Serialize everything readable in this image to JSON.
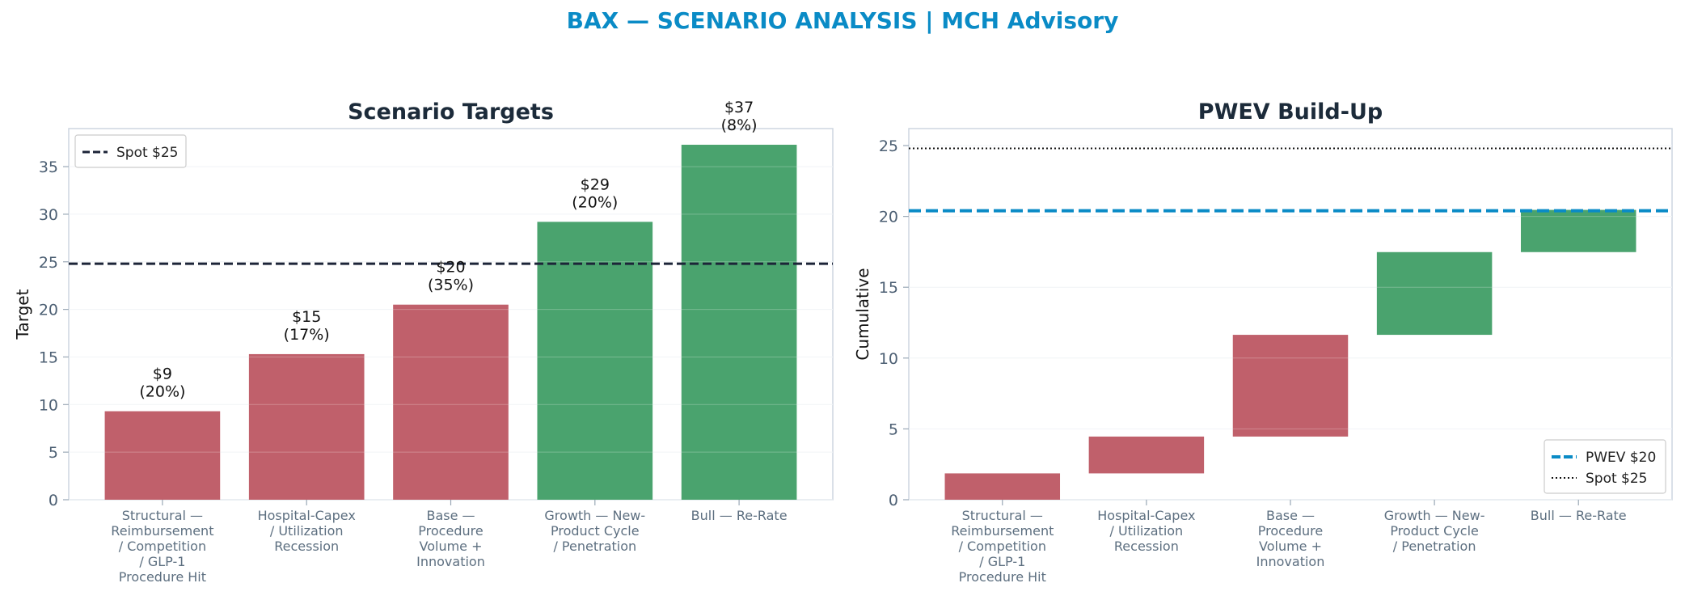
{
  "title": "BAX — SCENARIO ANALYSIS | MCH Advisory",
  "colors": {
    "bear": "#c0606b",
    "bull": "#4aa36e",
    "pwev": "#0a8bc6",
    "spot": "#1c2438",
    "title": "#0a8bc6"
  },
  "chart_data": [
    {
      "type": "bar",
      "title": "Scenario Targets",
      "xlabel": "",
      "ylabel": "Target",
      "categories": [
        "Structural — Reimbursement / Competition / GLP-1 Procedure Hit",
        "Hospital-Capex / Utilization Recession",
        "Base — Procedure Volume + Innovation",
        "Growth — New-Product Cycle / Penetration",
        "Bull — Re-Rate"
      ],
      "category_lines": [
        [
          "Structural —",
          "Reimbursement",
          "/ Competition",
          "/ GLP-1",
          "Procedure Hit"
        ],
        [
          "Hospital-Capex",
          "/ Utilization",
          "Recession"
        ],
        [
          "Base —",
          "Procedure",
          "Volume +",
          "Innovation"
        ],
        [
          "Growth — New-",
          "Product Cycle",
          "/ Penetration"
        ],
        [
          "Bull — Re-Rate"
        ]
      ],
      "values": [
        9.3,
        15.3,
        20.5,
        29.2,
        37.3
      ],
      "bar_colors": [
        "bear",
        "bear",
        "bear",
        "bull",
        "bull"
      ],
      "value_labels": [
        "$9",
        "$15",
        "$20",
        "$29",
        "$37"
      ],
      "prob_labels": [
        "(20%)",
        "(17%)",
        "(35%)",
        "(20%)",
        "(8%)"
      ],
      "ylim": [
        0,
        39
      ],
      "yticks": [
        0,
        5,
        10,
        15,
        20,
        25,
        30,
        35
      ],
      "reference_lines": [
        {
          "label": "Spot $25",
          "value": 24.8,
          "style": "dashed"
        }
      ],
      "legend_position": "top-left",
      "grid": true
    },
    {
      "type": "waterfall",
      "title": "PWEV Build-Up",
      "xlabel": "",
      "ylabel": "Cumulative",
      "categories": [
        "Structural — Reimbursement / Competition / GLP-1 Procedure Hit",
        "Hospital-Capex / Utilization Recession",
        "Base — Procedure Volume + Innovation",
        "Growth — New-Product Cycle / Penetration",
        "Bull — Re-Rate"
      ],
      "category_lines": [
        [
          "Structural —",
          "Reimbursement",
          "/ Competition",
          "/ GLP-1",
          "Procedure Hit"
        ],
        [
          "Hospital-Capex",
          "/ Utilization",
          "Recession"
        ],
        [
          "Base —",
          "Procedure",
          "Volume +",
          "Innovation"
        ],
        [
          "Growth — New-",
          "Product Cycle",
          "/ Penetration"
        ],
        [
          "Bull — Re-Rate"
        ]
      ],
      "steps": [
        {
          "start": 0,
          "end": 1.86
        },
        {
          "start": 1.86,
          "end": 4.46
        },
        {
          "start": 4.46,
          "end": 11.64
        },
        {
          "start": 11.64,
          "end": 17.48
        },
        {
          "start": 17.48,
          "end": 20.46
        }
      ],
      "bar_colors": [
        "bear",
        "bear",
        "bear",
        "bull",
        "bull"
      ],
      "ylim": [
        0,
        26.2
      ],
      "yticks": [
        0,
        5,
        10,
        15,
        20,
        25
      ],
      "reference_lines": [
        {
          "label": "PWEV $20",
          "value": 20.4,
          "style": "dashed-thick"
        },
        {
          "label": "Spot $25",
          "value": 24.8,
          "style": "dotted"
        }
      ],
      "legend_position": "bottom-right",
      "grid": true
    }
  ]
}
